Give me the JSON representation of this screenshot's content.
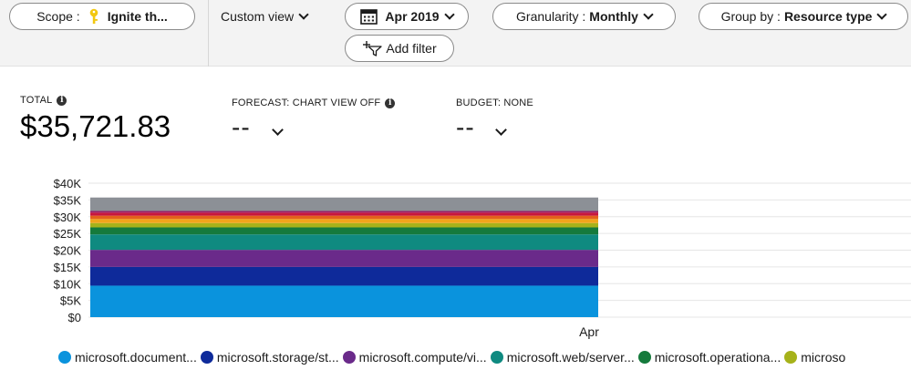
{
  "toolbar": {
    "scope": {
      "label": "Scope :",
      "value": "Ignite th..."
    },
    "view": {
      "label": "Custom view"
    },
    "date": {
      "label": "Apr 2019"
    },
    "granularity": {
      "label": "Granularity :",
      "value": "Monthly"
    },
    "group_by": {
      "label": "Group by :",
      "value": "Resource type"
    },
    "add_filter": {
      "label": "Add filter"
    }
  },
  "kpis": {
    "total": {
      "label": "TOTAL",
      "value": "$35,721.83"
    },
    "forecast": {
      "label": "FORECAST: CHART VIEW OFF",
      "value": "--"
    },
    "budget": {
      "label": "BUDGET: NONE",
      "value": "--"
    }
  },
  "colors": {
    "toolbar_bg": "#f3f3f3",
    "key_icon": "#f2c811",
    "gridline": "#e6e6e6"
  },
  "chart_data": {
    "type": "bar",
    "stacked": true,
    "categories": [
      "Apr"
    ],
    "ylim": [
      0,
      40000
    ],
    "yticks": [
      0,
      5000,
      10000,
      15000,
      20000,
      25000,
      30000,
      35000,
      40000
    ],
    "ytick_labels": [
      "$0",
      "$5K",
      "$10K",
      "$15K",
      "$20K",
      "$25K",
      "$30K",
      "$35K",
      "$40K"
    ],
    "grid": true,
    "legend_position": "bottom",
    "series": [
      {
        "name": "microsoft.document...",
        "color": "#0a93dd",
        "values": [
          9400
        ]
      },
      {
        "name": "microsoft.storage/st...",
        "color": "#0e2a9a",
        "values": [
          5600
        ]
      },
      {
        "name": "microsoft.compute/vi...",
        "color": "#6a2a8a",
        "values": [
          5100
        ]
      },
      {
        "name": "microsoft.web/server...",
        "color": "#0f8a80",
        "values": [
          4600
        ]
      },
      {
        "name": "microsoft.operationa...",
        "color": "#157a3c",
        "values": [
          2100
        ]
      },
      {
        "name": "microso",
        "color": "#a6b21a",
        "values": [
          1300
        ]
      },
      {
        "color": "#f0a51c",
        "values": [
          1200
        ]
      },
      {
        "color": "#e3611d",
        "values": [
          1000
        ]
      },
      {
        "color": "#c7163d",
        "values": [
          900
        ]
      },
      {
        "color": "#9a1f6a",
        "values": [
          500
        ]
      },
      {
        "color": "#8c9096",
        "values": [
          4021.83
        ]
      }
    ]
  }
}
